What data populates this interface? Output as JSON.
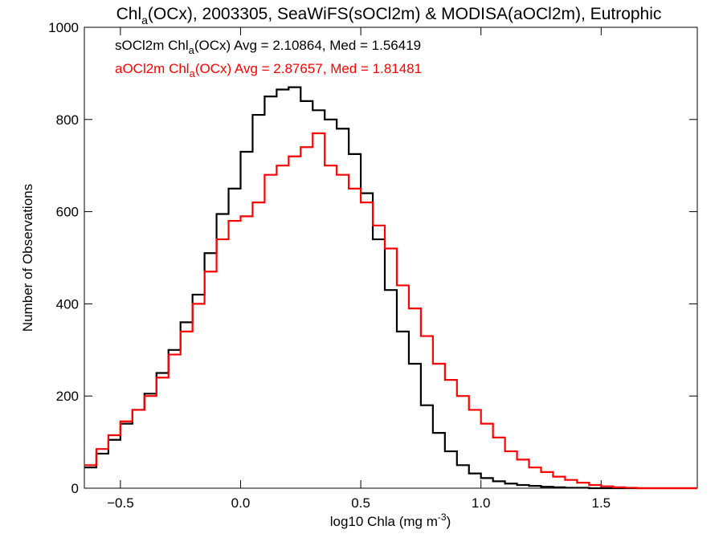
{
  "title": {
    "part1": "Chl",
    "sub": "a",
    "part2": "(OCx), 2003305, SeaWiFS(sOCl2m) & MODISA(aOCl2m), Eutrophic"
  },
  "axes": {
    "xlabel_main": "log10 Chla (mg m",
    "xlabel_sup": "-3",
    "xlabel_end": ")",
    "ylabel": "Number of Observations"
  },
  "legend": [
    {
      "pre": "sOCl2m Chl",
      "sub": "a",
      "post": "(OCx) Avg = 2.10864, Med = 1.56419",
      "color": "#000000"
    },
    {
      "pre": "aOCl2m Chl",
      "sub": "a",
      "post": "(OCx) Avg = 2.87657, Med = 1.81481",
      "color": "#ff0000"
    }
  ],
  "chart_data": {
    "type": "line",
    "step": true,
    "title": "Chla(OCx), 2003305, SeaWiFS(sOCl2m) & MODISA(aOCl2m), Eutrophic",
    "xlabel": "log10 Chla (mg m-3)",
    "ylabel": "Number of Observations",
    "xlim": [
      -0.65,
      1.9
    ],
    "ylim": [
      0,
      1000
    ],
    "x_ticks": [
      -0.5,
      0.0,
      0.5,
      1.0,
      1.5
    ],
    "x_tick_labels": [
      "−0.5",
      "0.0",
      "0.5",
      "1.0",
      "1.5"
    ],
    "y_ticks": [
      0,
      200,
      400,
      600,
      800,
      1000
    ],
    "y_tick_labels": [
      "0",
      "200",
      "400",
      "600",
      "800",
      "1000"
    ],
    "grid": false,
    "series": [
      {
        "name": "sOCl2m",
        "color": "#000000",
        "x": [
          -0.65,
          -0.6,
          -0.55,
          -0.5,
          -0.45,
          -0.4,
          -0.35,
          -0.3,
          -0.25,
          -0.2,
          -0.15,
          -0.1,
          -0.05,
          0.0,
          0.05,
          0.1,
          0.15,
          0.2,
          0.25,
          0.3,
          0.35,
          0.4,
          0.45,
          0.5,
          0.55,
          0.6,
          0.65,
          0.7,
          0.75,
          0.8,
          0.85,
          0.9,
          0.95,
          1.0,
          1.05,
          1.1,
          1.15,
          1.2,
          1.25,
          1.3,
          1.35,
          1.4,
          1.45,
          1.5,
          1.55,
          1.6,
          1.65,
          1.7,
          1.75,
          1.8,
          1.85,
          1.9
        ],
        "y": [
          45,
          75,
          105,
          140,
          170,
          205,
          250,
          300,
          360,
          420,
          510,
          595,
          650,
          730,
          810,
          850,
          865,
          870,
          840,
          820,
          800,
          780,
          725,
          640,
          540,
          430,
          340,
          270,
          180,
          120,
          80,
          50,
          32,
          22,
          15,
          10,
          7,
          5,
          3,
          2,
          1,
          1,
          0,
          0,
          0,
          0,
          0,
          0,
          0,
          0,
          0,
          0
        ]
      },
      {
        "name": "aOCl2m",
        "color": "#ff0000",
        "x": [
          -0.65,
          -0.6,
          -0.55,
          -0.5,
          -0.45,
          -0.4,
          -0.35,
          -0.3,
          -0.25,
          -0.2,
          -0.15,
          -0.1,
          -0.05,
          0.0,
          0.05,
          0.1,
          0.15,
          0.2,
          0.25,
          0.3,
          0.35,
          0.4,
          0.45,
          0.5,
          0.55,
          0.6,
          0.65,
          0.7,
          0.75,
          0.8,
          0.85,
          0.9,
          0.95,
          1.0,
          1.05,
          1.1,
          1.15,
          1.2,
          1.25,
          1.3,
          1.35,
          1.4,
          1.45,
          1.5,
          1.55,
          1.6,
          1.65,
          1.7,
          1.75,
          1.8,
          1.85,
          1.9
        ],
        "y": [
          50,
          85,
          115,
          145,
          170,
          200,
          240,
          290,
          340,
          400,
          470,
          540,
          580,
          590,
          620,
          680,
          700,
          720,
          740,
          770,
          700,
          680,
          650,
          620,
          570,
          520,
          440,
          390,
          330,
          270,
          235,
          200,
          170,
          140,
          110,
          80,
          62,
          45,
          35,
          25,
          18,
          12,
          7,
          4,
          2,
          1,
          0,
          0,
          0,
          0,
          0,
          0
        ]
      }
    ]
  }
}
